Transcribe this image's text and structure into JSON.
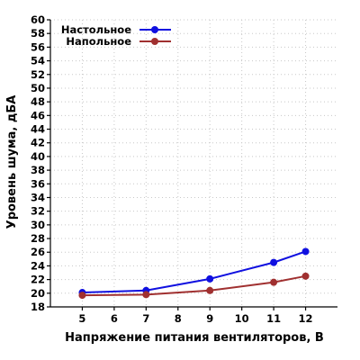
{
  "chart_data": {
    "type": "line",
    "xlabel": "Напряжение питания вентиляторов, В",
    "ylabel": "Уровень шума, дБА",
    "xlim": [
      4,
      13
    ],
    "ylim": [
      18,
      60
    ],
    "x_ticks": [
      5,
      6,
      7,
      8,
      9,
      10,
      11,
      12
    ],
    "y_ticks": [
      18,
      20,
      22,
      24,
      26,
      28,
      30,
      32,
      34,
      36,
      38,
      40,
      42,
      44,
      46,
      48,
      50,
      52,
      54,
      56,
      58,
      60
    ],
    "grid": true,
    "legend_position": "top-left",
    "series": [
      {
        "name": "Настольное",
        "color": "#1010e0",
        "x": [
          5,
          7,
          9,
          11,
          12
        ],
        "values": [
          20.1,
          20.4,
          22.1,
          24.5,
          26.1
        ]
      },
      {
        "name": "Напольное",
        "color": "#a03030",
        "x": [
          5,
          7,
          9,
          11,
          12
        ],
        "values": [
          19.7,
          19.8,
          20.4,
          21.6,
          22.5
        ]
      }
    ]
  }
}
